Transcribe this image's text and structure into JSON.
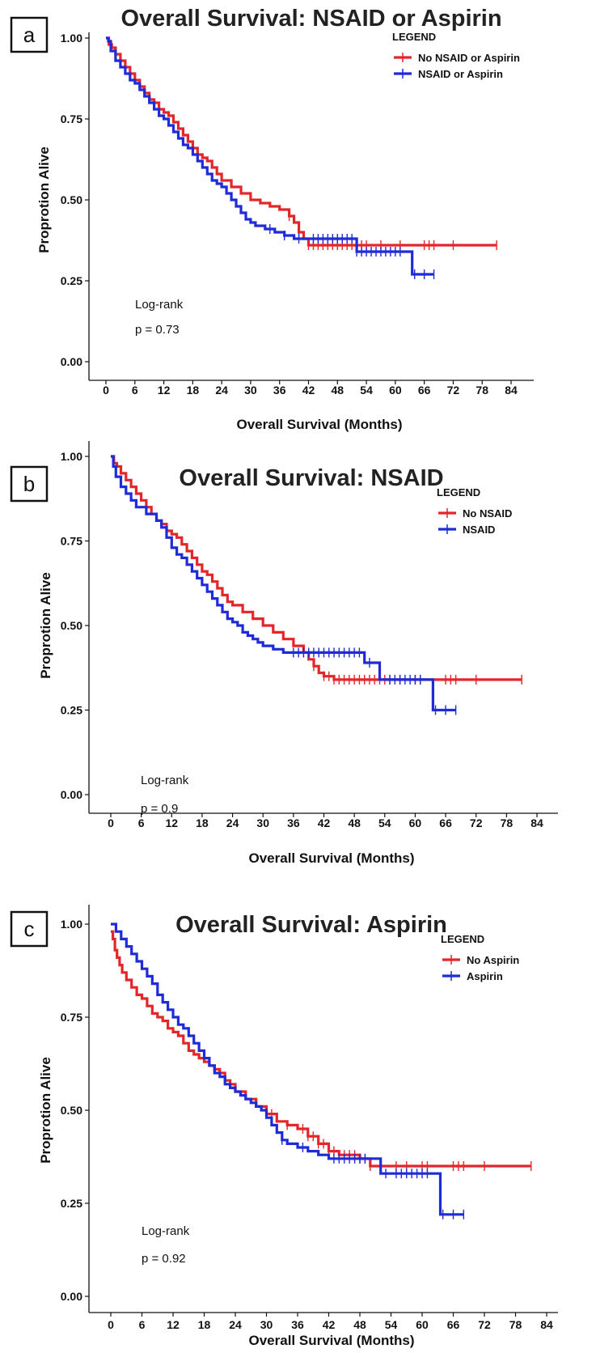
{
  "chart_data": [
    {
      "type": "line",
      "panel_label": "a",
      "title": "Overall Survival: NSAID or Aspirin",
      "xlabel": "Overall Survival (Months)",
      "ylabel": "Proprotion Alive",
      "xlim": [
        -2,
        86
      ],
      "ylim": [
        0,
        1
      ],
      "xticks": [
        0,
        6,
        12,
        18,
        24,
        30,
        36,
        42,
        48,
        54,
        60,
        66,
        72,
        78,
        84
      ],
      "yticks": [
        0.0,
        0.25,
        0.5,
        0.75,
        1.0
      ],
      "ytick_labels": [
        "0.00",
        "0.25",
        "0.50",
        "0.75",
        "1.00"
      ],
      "legend_title": "LEGEND",
      "legend_position": "top-right",
      "annotation": [
        "Log-rank",
        "p = 0.73"
      ],
      "series": [
        {
          "name": "No NSAID or Aspirin",
          "color": "#e3262a",
          "x": [
            0,
            0.6,
            1.2,
            2,
            3,
            4,
            5,
            6,
            7,
            8,
            9,
            10,
            11,
            12,
            13,
            14,
            15,
            16,
            17,
            18,
            19,
            20,
            21,
            22,
            23,
            24,
            26,
            28,
            30,
            32,
            34,
            36,
            38,
            39,
            40,
            41,
            42,
            48,
            81
          ],
          "y": [
            1.0,
            0.98,
            0.97,
            0.95,
            0.93,
            0.91,
            0.89,
            0.87,
            0.85,
            0.83,
            0.81,
            0.8,
            0.78,
            0.77,
            0.76,
            0.74,
            0.72,
            0.7,
            0.68,
            0.66,
            0.64,
            0.63,
            0.62,
            0.6,
            0.58,
            0.56,
            0.54,
            0.52,
            0.5,
            0.49,
            0.48,
            0.47,
            0.45,
            0.43,
            0.4,
            0.38,
            0.36,
            0.36,
            0.36
          ],
          "censor": [
            38,
            40,
            42,
            43,
            44,
            45,
            46,
            47,
            48,
            49,
            50,
            51,
            52,
            53,
            54,
            57,
            61,
            66,
            67,
            68,
            72,
            81
          ]
        },
        {
          "name": "NSAID or Aspirin",
          "color": "#1f2bd6",
          "x": [
            0,
            0.5,
            1,
            2,
            3,
            4,
            5,
            6,
            7,
            8,
            9,
            10,
            11,
            12,
            13,
            14,
            15,
            16,
            17,
            18,
            19,
            20,
            21,
            22,
            23,
            24,
            25,
            26,
            27,
            28,
            29,
            30,
            31,
            33,
            35,
            37,
            39,
            52,
            63.5,
            68
          ],
          "y": [
            1.0,
            0.99,
            0.96,
            0.93,
            0.91,
            0.89,
            0.87,
            0.86,
            0.84,
            0.82,
            0.8,
            0.78,
            0.76,
            0.75,
            0.73,
            0.71,
            0.69,
            0.67,
            0.66,
            0.64,
            0.62,
            0.6,
            0.58,
            0.56,
            0.55,
            0.54,
            0.52,
            0.5,
            0.48,
            0.46,
            0.44,
            0.43,
            0.42,
            0.41,
            0.4,
            0.39,
            0.38,
            0.34,
            0.27,
            0.27
          ],
          "censor": [
            34,
            37,
            40,
            43,
            44,
            45,
            46,
            47,
            48,
            49,
            50,
            51,
            52,
            53,
            54,
            55,
            56,
            57,
            58,
            59,
            60,
            61,
            64,
            66,
            68
          ]
        }
      ]
    },
    {
      "type": "line",
      "panel_label": "b",
      "title": "Overall Survival: NSAID",
      "xlabel": "Overall Survival (Months)",
      "ylabel": "Proprotion Alive",
      "xlim": [
        -2,
        86
      ],
      "ylim": [
        0,
        1
      ],
      "xticks": [
        0,
        6,
        12,
        18,
        24,
        30,
        36,
        42,
        48,
        54,
        60,
        66,
        72,
        78,
        84
      ],
      "yticks": [
        0.0,
        0.25,
        0.5,
        0.75,
        1.0
      ],
      "ytick_labels": [
        "0.00",
        "0.25",
        "0.50",
        "0.75",
        "1.00"
      ],
      "legend_title": "LEGEND",
      "legend_position": "top-right",
      "annotation": [
        "Log-rank",
        "p = 0.9"
      ],
      "series": [
        {
          "name": "No NSAID",
          "color": "#e3262a",
          "x": [
            0,
            0.6,
            1.2,
            2,
            3,
            4,
            5,
            6,
            7,
            8,
            9,
            10,
            11,
            12,
            13,
            14,
            15,
            16,
            17,
            18,
            19,
            20,
            21,
            22,
            23,
            24,
            26,
            28,
            30,
            32,
            34,
            36,
            38,
            39,
            40,
            41,
            42,
            44,
            81
          ],
          "y": [
            1.0,
            0.98,
            0.97,
            0.95,
            0.93,
            0.91,
            0.89,
            0.87,
            0.85,
            0.83,
            0.81,
            0.8,
            0.78,
            0.77,
            0.76,
            0.74,
            0.72,
            0.7,
            0.68,
            0.66,
            0.65,
            0.63,
            0.61,
            0.59,
            0.57,
            0.56,
            0.54,
            0.52,
            0.5,
            0.48,
            0.46,
            0.44,
            0.42,
            0.4,
            0.38,
            0.36,
            0.35,
            0.34,
            0.34
          ],
          "censor": [
            38,
            40,
            42,
            43,
            44,
            45,
            46,
            47,
            48,
            49,
            50,
            51,
            52,
            53,
            54,
            55,
            57,
            60,
            61,
            66,
            67,
            68,
            72,
            81
          ]
        },
        {
          "name": "NSAID",
          "color": "#1f2bd6",
          "x": [
            0,
            0.5,
            1,
            2,
            3,
            4,
            5,
            7,
            8,
            9,
            10,
            11,
            12,
            13,
            14,
            15,
            16,
            17,
            18,
            19,
            20,
            21,
            22,
            23,
            24,
            25,
            26,
            27,
            28,
            29,
            30,
            32,
            34,
            36,
            50,
            53,
            63.5,
            68
          ],
          "y": [
            1.0,
            0.97,
            0.94,
            0.91,
            0.89,
            0.87,
            0.85,
            0.83,
            0.83,
            0.81,
            0.79,
            0.76,
            0.73,
            0.71,
            0.7,
            0.68,
            0.66,
            0.64,
            0.62,
            0.6,
            0.58,
            0.56,
            0.54,
            0.52,
            0.51,
            0.5,
            0.48,
            0.47,
            0.46,
            0.45,
            0.44,
            0.43,
            0.42,
            0.42,
            0.39,
            0.34,
            0.25,
            0.25
          ],
          "censor": [
            36,
            37,
            38,
            39,
            40,
            41,
            42,
            43,
            44,
            45,
            46,
            47,
            48,
            49,
            51,
            55,
            56,
            57,
            58,
            59,
            60,
            61,
            64,
            66,
            68
          ]
        }
      ]
    },
    {
      "type": "line",
      "panel_label": "c",
      "title": "Overall Survival: Aspirin",
      "xlabel": "Overall Survival (Months)",
      "ylabel": "Proprotion Alive",
      "xlim": [
        -2,
        86
      ],
      "ylim": [
        0,
        1
      ],
      "xticks": [
        0,
        6,
        12,
        18,
        24,
        30,
        36,
        42,
        48,
        54,
        60,
        66,
        72,
        78,
        84
      ],
      "yticks": [
        0.0,
        0.25,
        0.5,
        0.75,
        1.0
      ],
      "ytick_labels": [
        "0.00",
        "0.25",
        "0.50",
        "0.75",
        "1.00"
      ],
      "legend_title": "LEGEND",
      "legend_position": "top-right",
      "annotation": [
        "Log-rank",
        "p = 0.92"
      ],
      "series": [
        {
          "name": "No Aspirin",
          "color": "#e3262a",
          "x": [
            0,
            0.4,
            0.8,
            1.2,
            1.7,
            2.2,
            3,
            4,
            5,
            6,
            7,
            8,
            9,
            10,
            11,
            12,
            13,
            14,
            15,
            16,
            17,
            18,
            19,
            20,
            21,
            22,
            23,
            24,
            26,
            28,
            30,
            32,
            34,
            36,
            38,
            40,
            42,
            44,
            48,
            50,
            81
          ],
          "y": [
            0.98,
            0.96,
            0.93,
            0.91,
            0.89,
            0.87,
            0.85,
            0.83,
            0.81,
            0.8,
            0.78,
            0.76,
            0.75,
            0.74,
            0.72,
            0.71,
            0.7,
            0.68,
            0.66,
            0.65,
            0.64,
            0.63,
            0.62,
            0.61,
            0.6,
            0.58,
            0.57,
            0.55,
            0.53,
            0.51,
            0.49,
            0.47,
            0.46,
            0.45,
            0.43,
            0.41,
            0.39,
            0.38,
            0.37,
            0.35,
            0.35
          ],
          "censor": [
            31,
            34,
            37,
            38,
            39,
            40,
            41,
            42,
            43,
            44,
            45,
            46,
            47,
            48,
            49,
            50,
            52,
            55,
            57,
            60,
            61,
            66,
            67,
            68,
            72,
            81
          ]
        },
        {
          "name": "Aspirin",
          "color": "#1f2bd6",
          "x": [
            0,
            1,
            2,
            3,
            4,
            5,
            6,
            7,
            8,
            9,
            10,
            11,
            12,
            13,
            14,
            15,
            16,
            17,
            18,
            19,
            20,
            21,
            22,
            23,
            24,
            25,
            26,
            27,
            28,
            29,
            30,
            31,
            32,
            33,
            34,
            36,
            38,
            40,
            42,
            52,
            63.5,
            68
          ],
          "y": [
            1.0,
            0.98,
            0.96,
            0.94,
            0.92,
            0.9,
            0.88,
            0.86,
            0.84,
            0.81,
            0.79,
            0.77,
            0.75,
            0.73,
            0.72,
            0.7,
            0.68,
            0.66,
            0.64,
            0.62,
            0.6,
            0.59,
            0.57,
            0.56,
            0.55,
            0.54,
            0.53,
            0.52,
            0.51,
            0.5,
            0.48,
            0.46,
            0.44,
            0.42,
            0.41,
            0.4,
            0.39,
            0.38,
            0.37,
            0.33,
            0.22,
            0.22
          ],
          "censor": [
            33,
            37,
            43,
            44,
            45,
            46,
            47,
            48,
            49,
            53,
            55,
            56,
            57,
            58,
            59,
            60,
            61,
            64,
            66,
            68
          ]
        }
      ]
    }
  ]
}
